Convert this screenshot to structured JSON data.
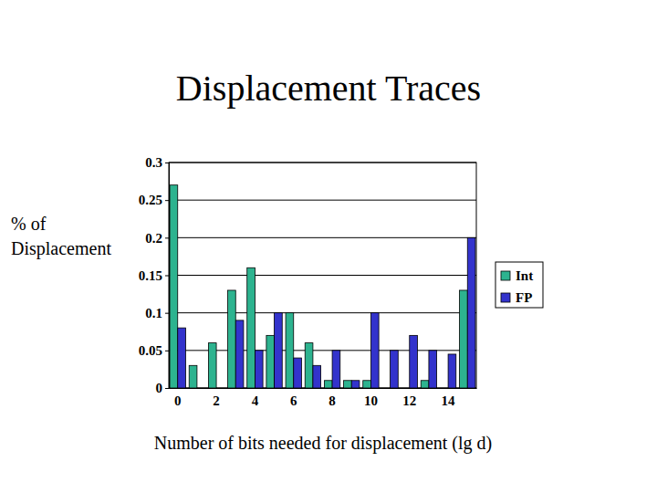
{
  "chart_data": {
    "type": "bar",
    "title": "Displacement Traces",
    "y_label": "% of\nDisplacement",
    "x_label": "Number of bits needed for displacement (lg d)",
    "categories": [
      "0",
      null,
      "2",
      null,
      "4",
      null,
      "6",
      null,
      "8",
      null,
      "10",
      null,
      "12",
      null,
      "14",
      null
    ],
    "series": [
      {
        "name": "Int",
        "color": "#2db38f",
        "values": [
          0.27,
          0.03,
          0.06,
          0.13,
          0.16,
          0.07,
          0.1,
          0.06,
          0.01,
          0.01,
          0.01,
          0,
          0,
          0.01,
          0,
          0.13
        ]
      },
      {
        "name": "FP",
        "color": "#3333cc",
        "values": [
          0.08,
          0,
          0,
          0.09,
          0.05,
          0.1,
          0.04,
          0.03,
          0.05,
          0.01,
          0.1,
          0.05,
          0.07,
          0.05,
          0.045,
          0.2
        ]
      }
    ],
    "ylim": [
      0,
      0.3
    ],
    "yticks": [
      0,
      0.05,
      0.1,
      0.15,
      0.2,
      0.25,
      0.3
    ],
    "grid": true,
    "legend": "right"
  }
}
